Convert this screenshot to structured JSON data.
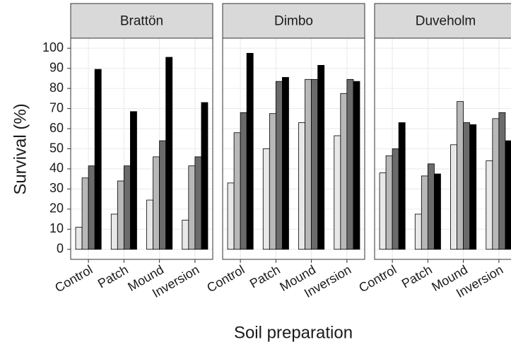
{
  "chart_data": {
    "type": "bar",
    "ylabel": "Survival (%)",
    "xlabel": "Soil preparation",
    "categories": [
      "Control",
      "Patch",
      "Mound",
      "Inversion"
    ],
    "ylim": [
      -5,
      105
    ],
    "yticks": [
      0,
      10,
      20,
      30,
      40,
      50,
      60,
      70,
      80,
      90,
      100
    ],
    "grid": true,
    "facets": [
      {
        "title": "Brattön",
        "series": [
          {
            "color": "#e8e8e8",
            "values": [
              11,
              17.5,
              24.5,
              14.5
            ]
          },
          {
            "color": "#b8b8b8",
            "values": [
              35.5,
              34,
              46,
              41.5
            ]
          },
          {
            "color": "#6b6b6b",
            "values": [
              41.5,
              41.5,
              54,
              46
            ]
          },
          {
            "color": "#000000",
            "values": [
              89.5,
              68.5,
              95.5,
              73
            ]
          }
        ]
      },
      {
        "title": "Dimbo",
        "series": [
          {
            "color": "#e8e8e8",
            "values": [
              33,
              50,
              63,
              56.5
            ]
          },
          {
            "color": "#b8b8b8",
            "values": [
              58,
              67.5,
              84.5,
              77.5
            ]
          },
          {
            "color": "#6b6b6b",
            "values": [
              68,
              83.5,
              84.5,
              84.5
            ]
          },
          {
            "color": "#000000",
            "values": [
              97.5,
              85.5,
              91.5,
              83.5
            ]
          }
        ]
      },
      {
        "title": "Duveholm",
        "series": [
          {
            "color": "#e8e8e8",
            "values": [
              38,
              17.5,
              52,
              44
            ]
          },
          {
            "color": "#b8b8b8",
            "values": [
              46.5,
              36.5,
              73.5,
              65
            ]
          },
          {
            "color": "#6b6b6b",
            "values": [
              50,
              42.5,
              63,
              68
            ]
          },
          {
            "color": "#000000",
            "values": [
              63,
              37.5,
              62,
              54
            ]
          }
        ]
      }
    ]
  }
}
